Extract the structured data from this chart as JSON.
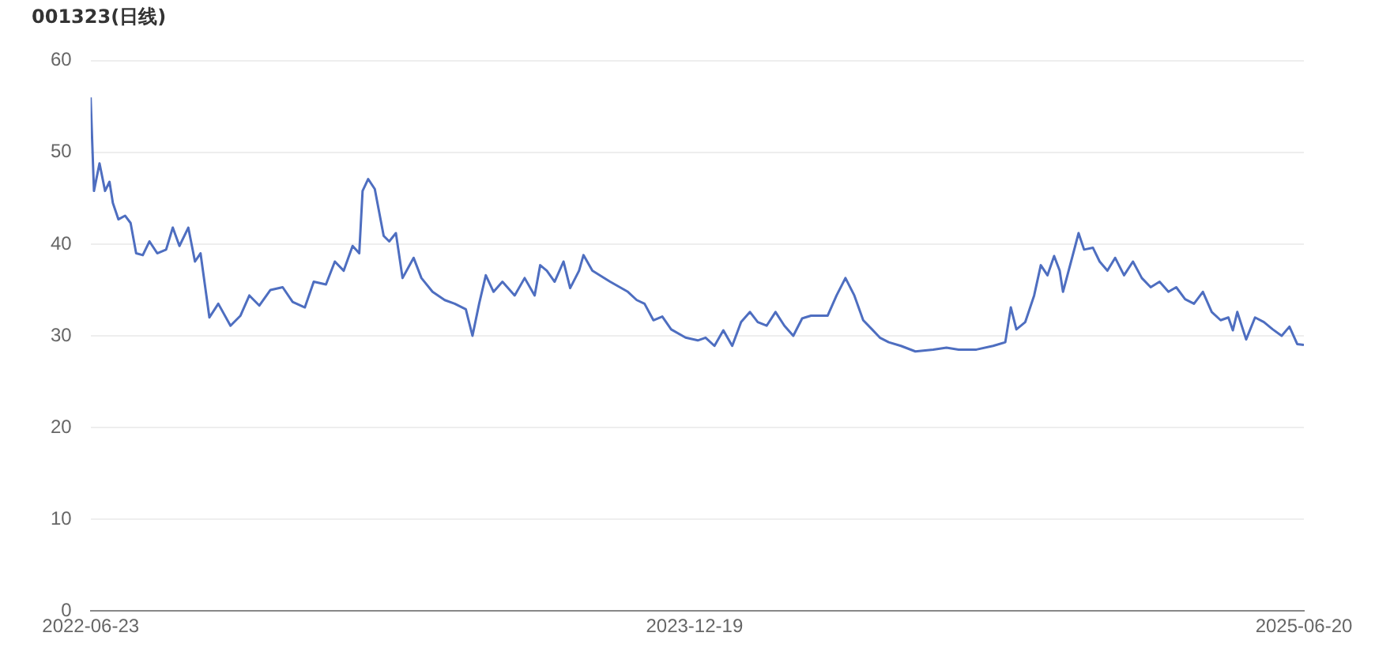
{
  "chart_data": {
    "type": "line",
    "title": "001323(日线)",
    "x": [
      "2022-06-23",
      "2022-06-26",
      "2022-07-01",
      "2022-07-06",
      "2022-07-10",
      "2022-07-13",
      "2022-07-18",
      "2022-07-24",
      "2022-07-29",
      "2022-08-03",
      "2022-08-09",
      "2022-08-15",
      "2022-08-22",
      "2022-08-30",
      "2022-09-05",
      "2022-09-11",
      "2022-09-19",
      "2022-09-25",
      "2022-09-30",
      "2022-10-08",
      "2022-10-16",
      "2022-10-27",
      "2022-11-05",
      "2022-11-13",
      "2022-11-22",
      "2022-12-02",
      "2022-12-13",
      "2022-12-22",
      "2023-01-02",
      "2023-01-10",
      "2023-01-21",
      "2023-01-29",
      "2023-02-06",
      "2023-02-14",
      "2023-02-20",
      "2023-02-23",
      "2023-02-28",
      "2023-03-06",
      "2023-03-14",
      "2023-03-19",
      "2023-03-25",
      "2023-03-31",
      "2023-04-10",
      "2023-04-17",
      "2023-04-27",
      "2023-05-08",
      "2023-05-17",
      "2023-05-27",
      "2023-06-02",
      "2023-06-08",
      "2023-06-14",
      "2023-06-21",
      "2023-06-29",
      "2023-07-10",
      "2023-07-19",
      "2023-07-28",
      "2023-08-02",
      "2023-08-08",
      "2023-08-15",
      "2023-08-23",
      "2023-08-29",
      "2023-09-06",
      "2023-09-10",
      "2023-09-18",
      "2023-10-04",
      "2023-10-20",
      "2023-10-28",
      "2023-11-04",
      "2023-11-12",
      "2023-11-20",
      "2023-11-28",
      "2023-12-11",
      "2023-12-22",
      "2023-12-29",
      "2024-01-06",
      "2024-01-14",
      "2024-01-22",
      "2024-01-30",
      "2024-02-07",
      "2024-02-14",
      "2024-02-22",
      "2024-03-01",
      "2024-03-09",
      "2024-03-17",
      "2024-03-25",
      "2024-04-02",
      "2024-04-17",
      "2024-04-25",
      "2024-05-03",
      "2024-05-11",
      "2024-05-19",
      "2024-05-27",
      "2024-06-03",
      "2024-06-11",
      "2024-06-22",
      "2024-07-05",
      "2024-07-21",
      "2024-08-02",
      "2024-08-13",
      "2024-08-29",
      "2024-09-13",
      "2024-09-24",
      "2024-09-29",
      "2024-10-04",
      "2024-10-12",
      "2024-10-20",
      "2024-10-26",
      "2024-11-01",
      "2024-11-07",
      "2024-11-12",
      "2024-11-15",
      "2024-11-26",
      "2024-11-29",
      "2024-12-04",
      "2024-12-12",
      "2024-12-18",
      "2024-12-25",
      "2025-01-01",
      "2025-01-09",
      "2025-01-17",
      "2025-01-25",
      "2025-02-02",
      "2025-02-10",
      "2025-02-18",
      "2025-02-25",
      "2025-03-05",
      "2025-03-13",
      "2025-03-21",
      "2025-03-29",
      "2025-04-06",
      "2025-04-13",
      "2025-04-17",
      "2025-04-21",
      "2025-04-29",
      "2025-05-07",
      "2025-05-15",
      "2025-05-23",
      "2025-05-31",
      "2025-06-07",
      "2025-06-14",
      "2025-06-20"
    ],
    "series": [
      {
        "color": "#4e6ec0",
        "values": [
          56.0,
          45.8,
          48.8,
          45.8,
          46.8,
          44.5,
          42.7,
          43.1,
          42.3,
          39.0,
          38.8,
          40.3,
          39.0,
          39.4,
          41.8,
          39.8,
          41.8,
          38.1,
          39.0,
          32.0,
          33.5,
          31.1,
          32.2,
          34.4,
          33.3,
          35.0,
          35.3,
          33.7,
          33.1,
          35.9,
          35.6,
          38.1,
          37.1,
          39.8,
          39.0,
          45.8,
          47.1,
          46.0,
          40.9,
          40.3,
          41.2,
          36.3,
          38.5,
          36.3,
          34.8,
          33.9,
          33.5,
          32.9,
          30.0,
          33.5,
          36.6,
          34.8,
          35.9,
          34.4,
          36.3,
          34.4,
          37.7,
          37.1,
          35.9,
          38.1,
          35.2,
          37.1,
          38.8,
          37.1,
          35.9,
          34.8,
          33.9,
          33.5,
          31.7,
          32.1,
          30.7,
          29.8,
          29.5,
          29.8,
          28.9,
          30.6,
          28.9,
          31.5,
          32.6,
          31.5,
          31.1,
          32.6,
          31.1,
          30.0,
          31.9,
          32.2,
          32.2,
          34.4,
          36.3,
          34.4,
          31.7,
          30.7,
          29.8,
          29.3,
          28.9,
          28.3,
          28.5,
          28.7,
          28.5,
          28.5,
          28.9,
          29.3,
          33.1,
          30.7,
          31.5,
          34.4,
          37.7,
          36.6,
          38.7,
          37.1,
          34.8,
          39.8,
          41.2,
          39.4,
          39.6,
          38.1,
          37.1,
          38.5,
          36.6,
          38.1,
          36.3,
          35.3,
          35.9,
          34.8,
          35.3,
          34.0,
          33.5,
          34.8,
          32.6,
          31.7,
          32.0,
          30.6,
          32.6,
          29.6,
          32.0,
          31.5,
          30.7,
          30.0,
          31.0,
          29.1,
          29.0
        ]
      }
    ],
    "xlim": [
      "2022-06-23",
      "2025-06-20"
    ],
    "xticks": [
      "2022-06-23",
      "2023-12-19",
      "2025-06-20"
    ],
    "ylim": [
      0,
      60
    ],
    "yticks": [
      0,
      10,
      20,
      30,
      40,
      50,
      60
    ],
    "grid": "y",
    "marker": "none",
    "line_style": "solid",
    "legend": false
  }
}
